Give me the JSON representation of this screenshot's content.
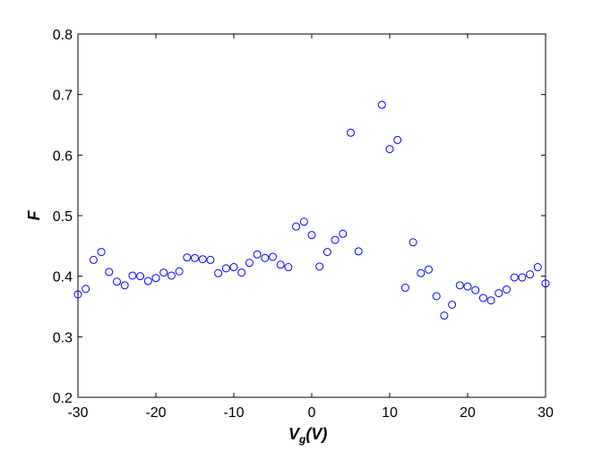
{
  "chart_data": {
    "type": "scatter",
    "title": "",
    "xlabel": {
      "main": "V",
      "sub": "g",
      "rest": "(V)"
    },
    "ylabel": "F",
    "xlim": [
      -30,
      30
    ],
    "ylim": [
      0.2,
      0.8
    ],
    "xticks": [
      -30,
      -20,
      -10,
      0,
      10,
      20,
      30
    ],
    "yticks": [
      0.2,
      0.3,
      0.4,
      0.5,
      0.6,
      0.7,
      0.8
    ],
    "xtick_labels": [
      "-30",
      "-20",
      "-10",
      "0",
      "10",
      "20",
      "30"
    ],
    "ytick_labels": [
      "0.2",
      "0.3",
      "0.4",
      "0.5",
      "0.6",
      "0.7",
      "0.8"
    ],
    "grid": false,
    "marker_color": "#0000ff",
    "series": [
      {
        "x": [
          -30,
          -29,
          -28,
          -27,
          -26,
          -25,
          -24,
          -23,
          -22,
          -21,
          -20,
          -19,
          -18,
          -17,
          -16,
          -15,
          -14,
          -13,
          -12,
          -11,
          -10,
          -9,
          -8,
          -7,
          -6,
          -5,
          -4,
          -3,
          -2,
          -1,
          0,
          1,
          2,
          3,
          4,
          5,
          6,
          9,
          10,
          11,
          12,
          13,
          14,
          15,
          16,
          17,
          18,
          19,
          20,
          21,
          22,
          23,
          24,
          25,
          26,
          27,
          28,
          29,
          30
        ],
        "y": [
          0.37,
          0.379,
          0.427,
          0.44,
          0.407,
          0.391,
          0.385,
          0.401,
          0.4,
          0.392,
          0.397,
          0.406,
          0.401,
          0.408,
          0.431,
          0.43,
          0.428,
          0.427,
          0.405,
          0.413,
          0.415,
          0.406,
          0.422,
          0.436,
          0.43,
          0.432,
          0.419,
          0.415,
          0.482,
          0.49,
          0.468,
          0.416,
          0.44,
          0.46,
          0.47,
          0.637,
          0.441,
          0.683,
          0.61,
          0.625,
          0.381,
          0.456,
          0.405,
          0.411,
          0.367,
          0.335,
          0.353,
          0.385,
          0.383,
          0.377,
          0.364,
          0.36,
          0.372,
          0.378,
          0.398,
          0.398,
          0.403,
          0.415,
          0.388
        ]
      }
    ]
  }
}
